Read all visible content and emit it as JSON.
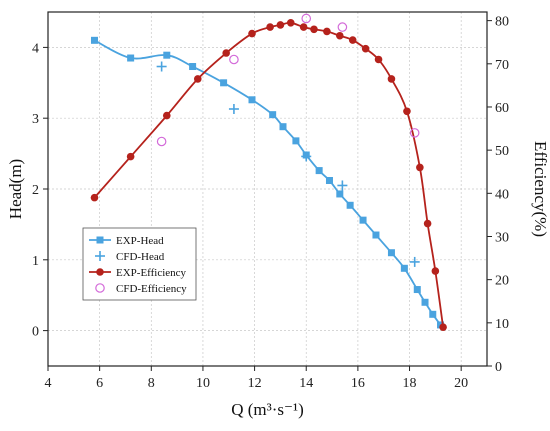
{
  "chart_data": {
    "type": "line",
    "title": "",
    "xlabel": "Q (m³·s⁻¹)",
    "ylabel_left": "Head(m)",
    "ylabel_right": "Efficiency(%)",
    "xlim": [
      4,
      21
    ],
    "ylim_left": [
      -0.5,
      4.5
    ],
    "ylim_right": [
      0,
      82
    ],
    "x_ticks": [
      4,
      6,
      8,
      10,
      12,
      14,
      16,
      18,
      20
    ],
    "y_left_ticks": [
      0,
      1,
      2,
      3,
      4
    ],
    "y_right_ticks": [
      0,
      10,
      20,
      30,
      40,
      50,
      60,
      70,
      80
    ],
    "grid": true,
    "legend_position": "lower-left",
    "colors": {
      "head": "#4aa3df",
      "efficiency": "#b5221c",
      "cfd_efficiency_marker": "#d36ad9",
      "grid": "#c9c9c9"
    },
    "series": [
      {
        "name": "EXP-Head",
        "axis": "left",
        "marker": "square",
        "line": true,
        "x": [
          5.8,
          7.2,
          8.6,
          9.6,
          10.8,
          11.9,
          12.7,
          13.1,
          13.6,
          14.0,
          14.5,
          14.9,
          15.3,
          15.7,
          16.2,
          16.7,
          17.3,
          17.8,
          18.3,
          18.6,
          18.9,
          19.2
        ],
        "y": [
          4.1,
          3.85,
          3.89,
          3.73,
          3.5,
          3.26,
          3.05,
          2.88,
          2.68,
          2.48,
          2.26,
          2.12,
          1.93,
          1.77,
          1.56,
          1.35,
          1.1,
          0.88,
          0.58,
          0.4,
          0.23,
          0.08
        ]
      },
      {
        "name": "CFD-Head",
        "axis": "left",
        "marker": "plus",
        "line": false,
        "x": [
          8.4,
          11.2,
          14.0,
          15.4,
          18.2
        ],
        "y": [
          3.73,
          3.13,
          2.46,
          2.05,
          0.97
        ]
      },
      {
        "name": "EXP-Efficiency",
        "axis": "right",
        "marker": "circle",
        "line": true,
        "x": [
          5.8,
          7.2,
          8.6,
          9.8,
          10.9,
          11.9,
          12.6,
          13.0,
          13.4,
          13.9,
          14.3,
          14.8,
          15.3,
          15.8,
          16.3,
          16.8,
          17.3,
          17.9,
          18.4,
          18.7,
          19.0,
          19.3
        ],
        "y": [
          39,
          48.5,
          58,
          66.5,
          72.5,
          77,
          78.5,
          79,
          79.5,
          78.5,
          78,
          77.5,
          76.5,
          75.5,
          73.5,
          71,
          66.5,
          59,
          46,
          33,
          22,
          9
        ]
      },
      {
        "name": "CFD-Efficiency",
        "axis": "right",
        "marker": "open-circle",
        "line": false,
        "x": [
          8.4,
          11.2,
          14.0,
          15.4,
          18.2
        ],
        "y": [
          52,
          71,
          80.5,
          78.5,
          54
        ]
      }
    ]
  }
}
